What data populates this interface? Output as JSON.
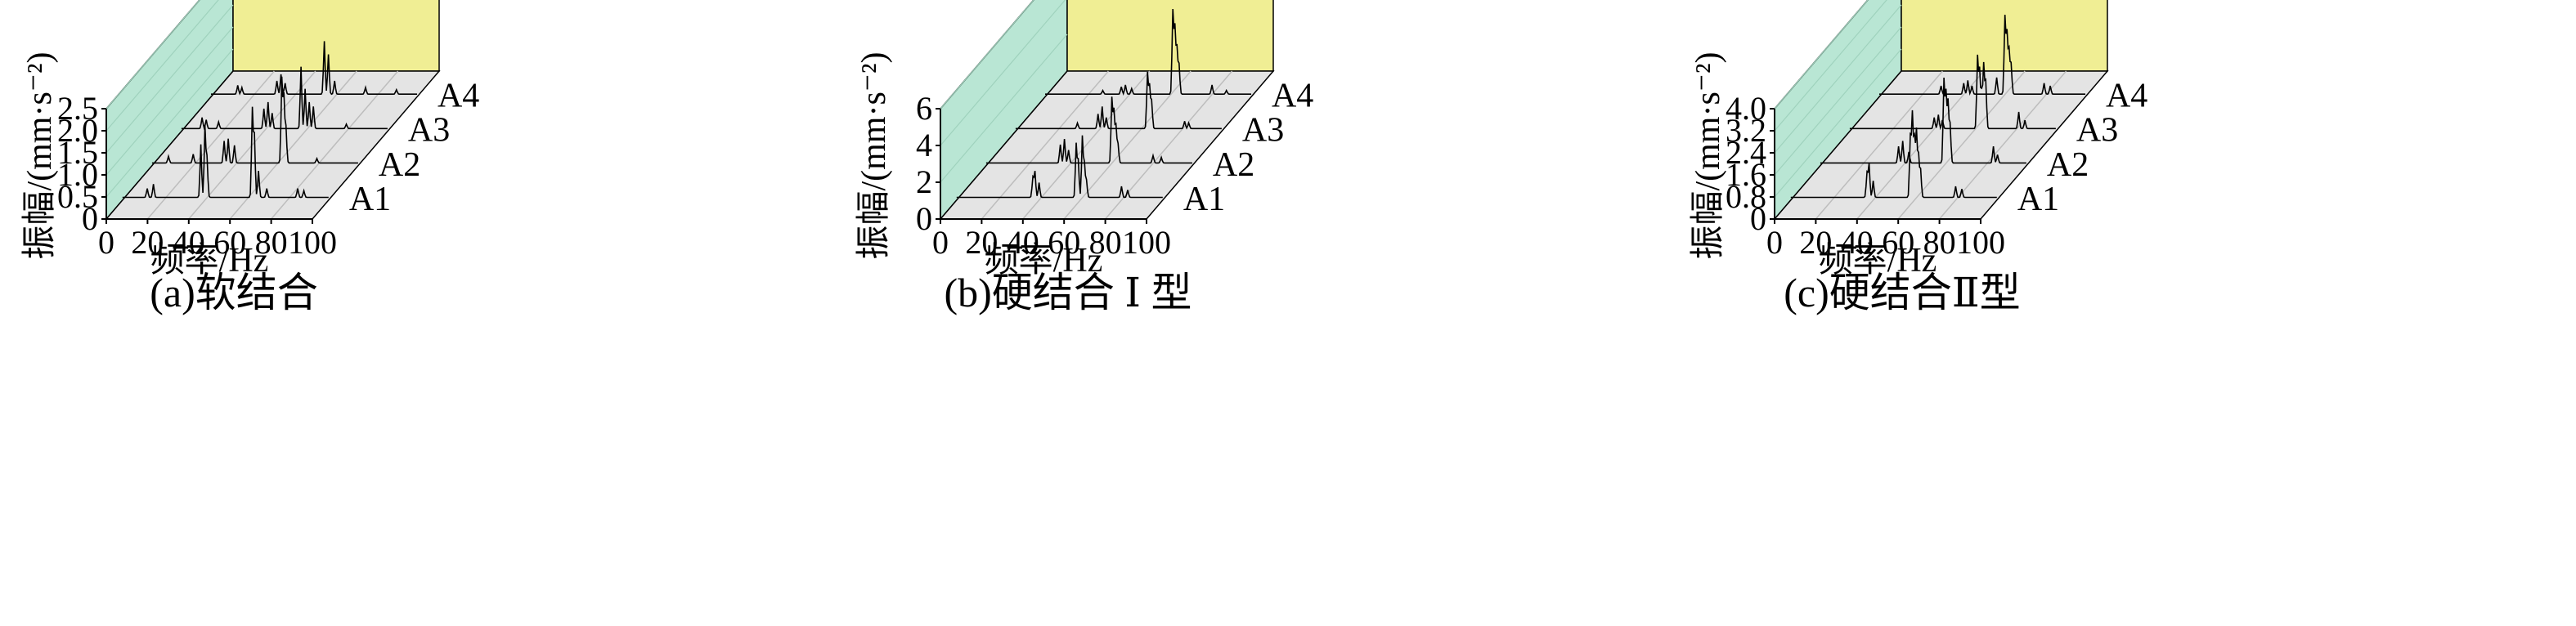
{
  "colors": {
    "back_wall": "#f0ee94",
    "side_wall": "#b9e6d4",
    "floor": "#e4e4e4",
    "line": "#000000"
  },
  "chart_data": [
    {
      "type": "waterfall",
      "caption": "(a)软结合",
      "xlabel": "频率/Hz",
      "ylabel": "振幅/(mm·s⁻²)",
      "xlim": [
        0,
        100
      ],
      "ylim": [
        0,
        2.5
      ],
      "xticks": [
        "0",
        "20",
        "40",
        "60",
        "80",
        "100"
      ],
      "yticks": [
        "0",
        "0.5",
        "1.0",
        "1.5",
        "2.0",
        "2.5"
      ],
      "grid": true,
      "series": [
        {
          "name": "A1",
          "peaks": [
            [
              12,
              0.2
            ],
            [
              15,
              0.3
            ],
            [
              38,
              1.2
            ],
            [
              40,
              1.6
            ],
            [
              41,
              0.9
            ],
            [
              63,
              2.0
            ],
            [
              64,
              1.4
            ],
            [
              66,
              0.6
            ],
            [
              70,
              0.2
            ],
            [
              85,
              0.2
            ],
            [
              88,
              0.15
            ]
          ]
        },
        {
          "name": "A2",
          "peaks": [
            [
              8,
              0.15
            ],
            [
              20,
              0.2
            ],
            [
              35,
              0.5
            ],
            [
              37,
              0.55
            ],
            [
              40,
              0.4
            ],
            [
              63,
              1.9
            ],
            [
              64,
              1.5
            ],
            [
              65,
              0.8
            ],
            [
              80,
              0.1
            ]
          ]
        },
        {
          "name": "A3",
          "peaks": [
            [
              10,
              0.25
            ],
            [
              12,
              0.2
            ],
            [
              18,
              0.15
            ],
            [
              40,
              0.45
            ],
            [
              42,
              0.6
            ],
            [
              44,
              0.35
            ],
            [
              58,
              1.4
            ],
            [
              60,
              0.9
            ],
            [
              62,
              0.6
            ],
            [
              64,
              0.5
            ],
            [
              80,
              0.1
            ]
          ]
        },
        {
          "name": "A4",
          "peaks": [
            [
              13,
              0.2
            ],
            [
              15,
              0.15
            ],
            [
              32,
              0.3
            ],
            [
              34,
              0.45
            ],
            [
              36,
              0.25
            ],
            [
              55,
              1.2
            ],
            [
              57,
              0.9
            ],
            [
              60,
              0.3
            ],
            [
              75,
              0.15
            ],
            [
              90,
              0.1
            ]
          ]
        }
      ]
    },
    {
      "type": "waterfall",
      "caption": "(b)硬结合 Ⅰ 型",
      "xlabel": "频率/Hz",
      "ylabel": "振幅/(mm·s⁻²)",
      "xlim": [
        0,
        100
      ],
      "ylim": [
        0,
        6
      ],
      "xticks": [
        "0",
        "20",
        "40",
        "60",
        "80",
        "100"
      ],
      "yticks": [
        "0",
        "2",
        "4",
        "6"
      ],
      "grid": true,
      "series": [
        {
          "name": "A1",
          "peaks": [
            [
              37,
              1.1
            ],
            [
              38,
              1.4
            ],
            [
              40,
              0.8
            ],
            [
              58,
              2.9
            ],
            [
              59,
              2.0
            ],
            [
              61,
              3.3
            ],
            [
              62,
              1.8
            ],
            [
              63,
              0.9
            ],
            [
              80,
              0.6
            ],
            [
              83,
              0.4
            ]
          ]
        },
        {
          "name": "A2",
          "peaks": [
            [
              36,
              1.0
            ],
            [
              38,
              1.3
            ],
            [
              40,
              0.7
            ],
            [
              61,
              3.5
            ],
            [
              62,
              2.8
            ],
            [
              63,
              2.0
            ],
            [
              64,
              1.0
            ],
            [
              81,
              0.4
            ],
            [
              85,
              0.3
            ]
          ]
        },
        {
          "name": "A3",
          "peaks": [
            [
              30,
              0.3
            ],
            [
              40,
              0.8
            ],
            [
              42,
              1.2
            ],
            [
              44,
              0.6
            ],
            [
              64,
              3.0
            ],
            [
              65,
              2.3
            ],
            [
              66,
              1.5
            ],
            [
              82,
              0.4
            ],
            [
              84,
              0.3
            ]
          ]
        },
        {
          "name": "A4",
          "peaks": [
            [
              28,
              0.2
            ],
            [
              37,
              0.4
            ],
            [
              39,
              0.5
            ],
            [
              42,
              0.3
            ],
            [
              62,
              4.5
            ],
            [
              63,
              3.6
            ],
            [
              64,
              2.5
            ],
            [
              65,
              1.6
            ],
            [
              81,
              0.5
            ],
            [
              88,
              0.2
            ]
          ]
        }
      ]
    },
    {
      "type": "waterfall",
      "caption": "(c)硬结合Ⅱ型",
      "xlabel": "频率/Hz",
      "ylabel": "振幅/(mm·s⁻²)",
      "xlim": [
        0,
        100
      ],
      "ylim": [
        0,
        4.0
      ],
      "xticks": [
        "0",
        "20",
        "40",
        "60",
        "80",
        "100"
      ],
      "yticks": [
        "0",
        "0.8",
        "1.6",
        "2.4",
        "3.2",
        "4.0"
      ],
      "grid": true,
      "series": [
        {
          "name": "A1",
          "peaks": [
            [
              37,
              0.9
            ],
            [
              38,
              1.2
            ],
            [
              40,
              0.6
            ],
            [
              58,
              2.2
            ],
            [
              59,
              3.0
            ],
            [
              60,
              2.1
            ],
            [
              61,
              2.4
            ],
            [
              62,
              1.5
            ],
            [
              63,
              1.0
            ],
            [
              80,
              0.4
            ],
            [
              83,
              0.3
            ]
          ]
        },
        {
          "name": "A2",
          "peaks": [
            [
              38,
              0.6
            ],
            [
              40,
              0.8
            ],
            [
              43,
              0.4
            ],
            [
              60,
              3.0
            ],
            [
              61,
              2.5
            ],
            [
              62,
              2.2
            ],
            [
              63,
              1.4
            ],
            [
              84,
              0.6
            ],
            [
              86,
              0.3
            ]
          ]
        },
        {
          "name": "A3",
          "peaks": [
            [
              41,
              0.4
            ],
            [
              43,
              0.5
            ],
            [
              45,
              0.3
            ],
            [
              62,
              2.6
            ],
            [
              63,
              2.1
            ],
            [
              64,
              1.3
            ],
            [
              65,
              2.3
            ],
            [
              66,
              1.7
            ],
            [
              82,
              0.6
            ],
            [
              85,
              0.3
            ]
          ]
        },
        {
          "name": "A4",
          "peaks": [
            [
              30,
              0.3
            ],
            [
              41,
              0.4
            ],
            [
              43,
              0.5
            ],
            [
              45,
              0.3
            ],
            [
              57,
              0.6
            ],
            [
              61,
              2.8
            ],
            [
              62,
              2.2
            ],
            [
              63,
              1.6
            ],
            [
              64,
              1.1
            ],
            [
              80,
              0.4
            ],
            [
              83,
              0.3
            ]
          ]
        }
      ]
    }
  ]
}
